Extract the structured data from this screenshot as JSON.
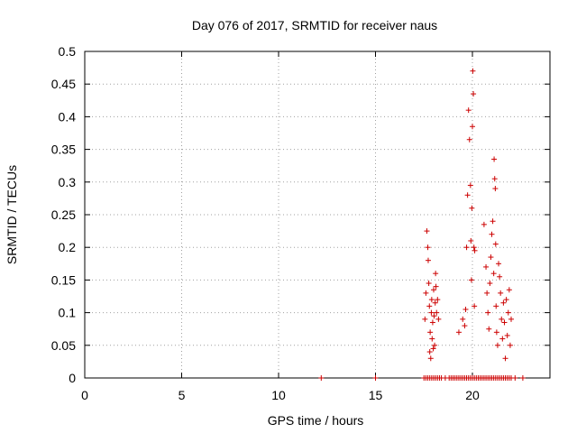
{
  "chart_data": {
    "type": "scatter",
    "title": "Day 076 of 2017, SRMTID for receiver naus",
    "xlabel": "GPS time / hours",
    "ylabel": "SRMTID / TECUs",
    "xlim": [
      0,
      24
    ],
    "ylim": [
      0,
      0.5
    ],
    "grid": true,
    "marker": "+",
    "colors": {
      "points": "#cc0000",
      "grid": "#a0a0a0",
      "frame": "#000000"
    },
    "x_ticks": [
      0,
      5,
      10,
      15,
      20
    ],
    "x_tick_labels": [
      "0",
      "5",
      "10",
      "15",
      "20"
    ],
    "y_ticks": [
      0,
      0.05,
      0.1,
      0.15,
      0.2,
      0.25,
      0.3,
      0.35,
      0.4,
      0.45,
      0.5
    ],
    "y_tick_labels": [
      "0",
      "0.05",
      "0.1",
      "0.15",
      "0.2",
      "0.25",
      "0.3",
      "0.35",
      "0.4",
      "0.45",
      "0.5"
    ],
    "series": [
      {
        "name": "SRMTID",
        "x": [
          12.2,
          15.0,
          17.5,
          17.6,
          17.7,
          17.8,
          17.9,
          18.0,
          18.1,
          18.2,
          18.3,
          18.4,
          18.6,
          18.8,
          18.9,
          19.0,
          19.1,
          19.2,
          19.3,
          19.4,
          19.5,
          19.6,
          19.7,
          19.8,
          19.9,
          20.0,
          20.1,
          20.2,
          20.3,
          20.4,
          20.5,
          20.6,
          20.7,
          20.8,
          20.9,
          21.0,
          21.1,
          21.2,
          21.3,
          21.4,
          21.5,
          21.6,
          21.7,
          21.8,
          21.9,
          22.0,
          22.2,
          22.6,
          17.55,
          17.6,
          17.65,
          17.7,
          17.72,
          17.75,
          17.78,
          17.8,
          17.82,
          17.85,
          17.88,
          17.9,
          17.92,
          17.95,
          17.98,
          18.0,
          18.02,
          18.05,
          18.08,
          18.1,
          18.12,
          18.15,
          18.2,
          18.25,
          19.3,
          19.5,
          19.6,
          19.65,
          19.7,
          19.75,
          19.8,
          19.85,
          19.9,
          19.92,
          19.95,
          19.97,
          20.0,
          20.02,
          20.05,
          20.08,
          20.1,
          20.12,
          20.6,
          20.7,
          20.75,
          20.8,
          20.85,
          20.9,
          20.95,
          21.0,
          21.05,
          21.1,
          21.12,
          21.15,
          21.18,
          21.2,
          21.22,
          21.25,
          21.3,
          21.35,
          21.4,
          21.45,
          21.5,
          21.55,
          21.6,
          21.65,
          21.7,
          21.75,
          21.8,
          21.85,
          21.9,
          21.95,
          22.0
        ],
        "y": [
          0,
          0,
          0,
          0,
          0,
          0,
          0,
          0,
          0,
          0,
          0,
          0,
          0,
          0,
          0,
          0,
          0,
          0,
          0,
          0,
          0,
          0,
          0,
          0,
          0,
          0,
          0,
          0,
          0,
          0,
          0,
          0,
          0,
          0,
          0,
          0,
          0,
          0,
          0,
          0,
          0,
          0,
          0,
          0,
          0,
          0,
          0,
          0,
          0.09,
          0.13,
          0.225,
          0.2,
          0.18,
          0.145,
          0.11,
          0.04,
          0.07,
          0.03,
          0.1,
          0.12,
          0.06,
          0.085,
          0.045,
          0.135,
          0.095,
          0.05,
          0.115,
          0.16,
          0.14,
          0.1,
          0.12,
          0.09,
          0.07,
          0.09,
          0.08,
          0.105,
          0.2,
          0.28,
          0.41,
          0.365,
          0.295,
          0.21,
          0.15,
          0.26,
          0.385,
          0.47,
          0.435,
          0.2,
          0.11,
          0.195,
          0.235,
          0.17,
          0.13,
          0.1,
          0.075,
          0.145,
          0.185,
          0.22,
          0.24,
          0.16,
          0.335,
          0.305,
          0.29,
          0.205,
          0.11,
          0.07,
          0.05,
          0.175,
          0.155,
          0.13,
          0.09,
          0.06,
          0.115,
          0.085,
          0.03,
          0.12,
          0.065,
          0.1,
          0.135,
          0.05,
          0.09
        ]
      }
    ]
  }
}
